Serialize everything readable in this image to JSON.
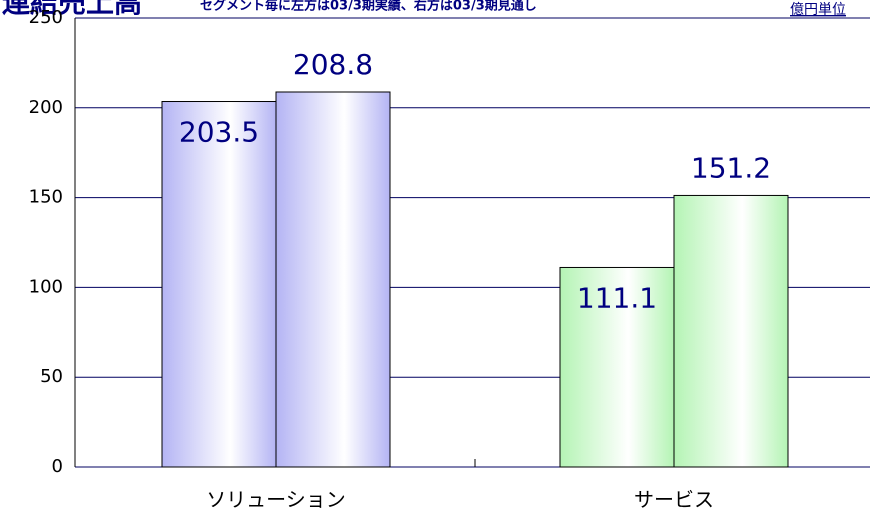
{
  "chart_data": {
    "type": "bar",
    "title": "連結売上高",
    "subtitle": "セグメント毎に左方は03/3期実績、右方は03/3期見通し",
    "unit_label": "億円単位",
    "categories": [
      "ソリューション",
      "サービス"
    ],
    "series": [
      {
        "values": [
          203.5,
          111.1
        ]
      },
      {
        "values": [
          208.8,
          151.2
        ]
      }
    ],
    "category_colors": [
      "#b4b4f4",
      "#b4f4b4"
    ],
    "ylim": [
      0,
      250
    ],
    "yticks": [
      0,
      50,
      100,
      150,
      200,
      250
    ],
    "grid": true
  }
}
